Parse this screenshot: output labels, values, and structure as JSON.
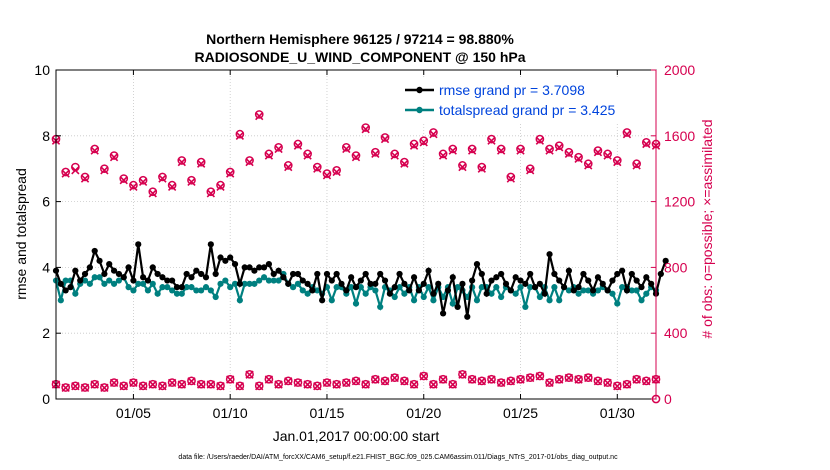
{
  "chart_data": {
    "type": "line",
    "title_line1": "Northern Hemisphere 96125 / 97214 = 98.880%",
    "title_line2": "RADIOSONDE_U_WIND_COMPONENT @ 150 hPa",
    "xlabel": "Jan.01,2017 00:00:00 start",
    "ylabel_left": "rmse and totalspread",
    "ylabel_right": "# of obs: o=possible; ×=assimilated",
    "footer": "data file: /Users/raeder/DAI/ATM_forcXX/CAM6_setup/f.e21.FHIST_BGC.f09_025.CAM6assim.011/Diags_NTrS_2017-01/obs_diag_output.nc",
    "xlim": [
      1,
      32
    ],
    "ylim_left": [
      0,
      10
    ],
    "ylim_right": [
      0,
      2000
    ],
    "x_ticks": [
      {
        "value": 5,
        "label": "01/05"
      },
      {
        "value": 10,
        "label": "01/10"
      },
      {
        "value": 15,
        "label": "01/15"
      },
      {
        "value": 20,
        "label": "01/20"
      },
      {
        "value": 25,
        "label": "01/25"
      },
      {
        "value": 30,
        "label": "01/30"
      }
    ],
    "y_ticks_left": [
      "0",
      "2",
      "4",
      "6",
      "8",
      "10"
    ],
    "y_ticks_right": [
      "0",
      "400",
      "800",
      "1200",
      "1600",
      "2000"
    ],
    "colors": {
      "rmse": "#000000",
      "spread": "#008080",
      "obs": "#d6004f",
      "legend_text": "#0044dd"
    },
    "series": [
      {
        "name": "rmse grand pr = 3.7098",
        "axis": "left",
        "x_start": 1.0,
        "x_step": 0.25,
        "values": [
          3.9,
          3.5,
          3.3,
          3.4,
          3.9,
          3.6,
          3.8,
          4.0,
          4.5,
          4.2,
          3.8,
          4.1,
          3.9,
          3.8,
          3.7,
          4.0,
          3.6,
          4.7,
          3.7,
          3.6,
          4.0,
          3.8,
          3.7,
          3.6,
          3.6,
          3.4,
          3.4,
          3.8,
          3.7,
          3.9,
          3.8,
          3.7,
          4.7,
          3.8,
          4.3,
          4.2,
          4.3,
          4.1,
          3.5,
          4.0,
          4.0,
          3.9,
          4.0,
          4.0,
          4.1,
          3.8,
          3.9,
          3.7,
          3.5,
          3.8,
          3.8,
          3.6,
          3.5,
          3.3,
          3.8,
          3.0,
          3.8,
          3.6,
          3.8,
          3.5,
          3.3,
          3.7,
          3.4,
          3.6,
          3.8,
          3.5,
          3.5,
          3.8,
          3.6,
          3.2,
          3.4,
          3.8,
          3.5,
          3.3,
          3.7,
          3.3,
          3.5,
          3.9,
          3.2,
          3.5,
          2.6,
          3.3,
          3.7,
          2.8,
          3.5,
          2.5,
          3.6,
          4.1,
          3.8,
          3.2,
          3.6,
          3.7,
          3.8,
          3.5,
          3.3,
          3.7,
          3.6,
          3.5,
          3.8,
          3.4,
          3.5,
          3.2,
          4.4,
          3.8,
          3.6,
          3.4,
          3.9,
          3.3,
          3.4,
          3.8,
          3.6,
          3.3,
          3.7,
          3.5,
          3.3,
          3.6,
          3.8,
          3.9,
          3.3,
          3.8,
          3.6,
          3.4,
          3.7,
          3.5,
          3.2,
          3.8,
          4.2
        ]
      },
      {
        "name": "totalspread grand pr = 3.425",
        "axis": "left",
        "x_start": 1.0,
        "x_step": 0.25,
        "values": [
          3.6,
          3.0,
          3.6,
          3.6,
          3.2,
          3.5,
          3.6,
          3.5,
          3.7,
          3.7,
          3.5,
          3.6,
          3.5,
          3.6,
          3.7,
          3.4,
          3.3,
          3.5,
          3.5,
          3.3,
          3.5,
          3.2,
          3.4,
          3.4,
          3.3,
          3.2,
          3.2,
          3.4,
          3.4,
          3.3,
          3.3,
          3.4,
          3.3,
          3.1,
          3.5,
          3.6,
          3.4,
          3.5,
          3.0,
          3.5,
          3.5,
          3.5,
          3.6,
          3.7,
          3.6,
          3.6,
          3.6,
          3.8,
          3.5,
          3.4,
          3.5,
          3.3,
          3.2,
          3.4,
          3.3,
          3.2,
          3.4,
          3.0,
          3.4,
          3.4,
          3.2,
          3.4,
          2.9,
          3.4,
          3.2,
          3.4,
          3.3,
          2.8,
          3.4,
          3.3,
          3.1,
          3.4,
          3.2,
          3.4,
          3.0,
          3.4,
          3.1,
          3.4,
          3.0,
          3.4,
          3.1,
          3.4,
          2.9,
          3.4,
          3.3,
          3.1,
          3.4,
          3.0,
          3.4,
          3.4,
          3.2,
          3.4,
          3.1,
          3.4,
          3.3,
          3.2,
          3.4,
          2.8,
          3.4,
          3.4,
          3.1,
          3.4,
          3.0,
          3.4,
          3.0,
          3.4,
          3.3,
          3.4,
          3.2,
          3.3,
          3.3,
          3.2,
          3.3,
          3.4,
          3.3,
          3.2,
          2.9,
          3.4,
          3.4,
          3.3,
          3.3,
          3.0,
          3.2,
          3.4,
          3.3
        ]
      },
      {
        "name": "obs possible (o) upper",
        "axis": "right",
        "marker": "o",
        "x_start": 1.0,
        "x_step": 0.5,
        "values": [
          1580,
          1380,
          1410,
          1350,
          1520,
          1400,
          1480,
          1340,
          1300,
          1330,
          1260,
          1350,
          1300,
          1450,
          1330,
          1440,
          1260,
          1300,
          1380,
          1610,
          1450,
          1730,
          1490,
          1530,
          1420,
          1550,
          1490,
          1410,
          1370,
          1390,
          1530,
          1480,
          1650,
          1500,
          1590,
          1490,
          1440,
          1550,
          1570,
          1620,
          1490,
          1520,
          1420,
          1520,
          1410,
          1580,
          1520,
          1350,
          1520,
          1400,
          1580,
          1520,
          1540,
          1500,
          1470,
          1430,
          1510,
          1490,
          1450,
          1620,
          1430,
          1560,
          1550
        ]
      },
      {
        "name": "obs assimilated (x) upper",
        "axis": "right",
        "marker": "x",
        "x_start": 1.0,
        "x_step": 0.5,
        "values": [
          1570,
          1370,
          1390,
          1340,
          1510,
          1390,
          1470,
          1330,
          1290,
          1320,
          1250,
          1340,
          1290,
          1440,
          1320,
          1430,
          1250,
          1290,
          1370,
          1600,
          1440,
          1720,
          1480,
          1520,
          1410,
          1540,
          1480,
          1400,
          1360,
          1380,
          1520,
          1470,
          1640,
          1490,
          1580,
          1480,
          1430,
          1540,
          1560,
          1610,
          1480,
          1510,
          1410,
          1510,
          1400,
          1570,
          1510,
          1340,
          1510,
          1390,
          1570,
          1510,
          1530,
          1490,
          1460,
          1420,
          1500,
          1480,
          1440,
          1610,
          1420,
          1550,
          1540
        ]
      },
      {
        "name": "obs possible (o) lower",
        "axis": "right",
        "marker": "o",
        "x_start": 1.0,
        "x_step": 0.5,
        "values": [
          90,
          70,
          80,
          70,
          90,
          70,
          100,
          80,
          100,
          80,
          90,
          80,
          100,
          90,
          110,
          90,
          90,
          80,
          120,
          80,
          150,
          80,
          120,
          90,
          110,
          100,
          90,
          80,
          100,
          90,
          100,
          110,
          90,
          120,
          110,
          130,
          110,
          90,
          140,
          90,
          120,
          90,
          150,
          120,
          110,
          120,
          100,
          110,
          120,
          130,
          140,
          100,
          120,
          130,
          120,
          130,
          110,
          100,
          80,
          90,
          120,
          110,
          120
        ]
      },
      {
        "name": "obs assimilated (x) lower",
        "axis": "right",
        "marker": "x",
        "x_start": 1.0,
        "x_step": 0.5,
        "values": [
          88,
          68,
          78,
          68,
          88,
          68,
          98,
          78,
          98,
          78,
          88,
          78,
          98,
          88,
          108,
          88,
          88,
          78,
          118,
          78,
          148,
          78,
          118,
          88,
          108,
          98,
          88,
          78,
          98,
          88,
          98,
          108,
          88,
          118,
          108,
          128,
          108,
          88,
          138,
          88,
          118,
          88,
          148,
          118,
          108,
          118,
          98,
          108,
          118,
          128,
          138,
          98,
          118,
          128,
          118,
          128,
          108,
          98,
          78,
          88,
          118,
          108,
          118
        ]
      }
    ],
    "obs_end_points": [
      {
        "x": 32,
        "value": 0
      }
    ]
  }
}
